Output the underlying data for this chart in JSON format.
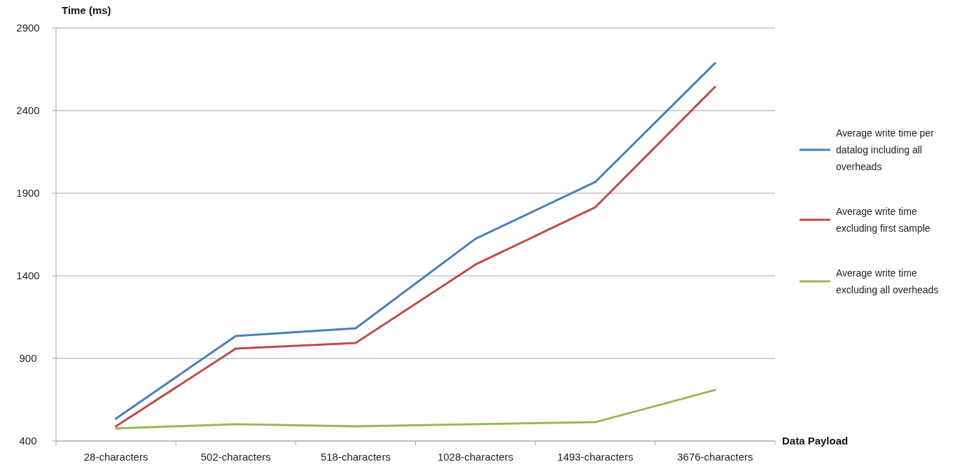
{
  "chart_data": {
    "type": "line",
    "ylabel": "Time (ms)",
    "xlabel": "Data Payload",
    "categories": [
      "28-characters",
      "502-characters",
      "518-characters",
      "1028-characters",
      "1493-characters",
      "3676-characters"
    ],
    "ylim": [
      400,
      2900
    ],
    "yticks": [
      400,
      900,
      1400,
      1900,
      2400,
      2900
    ],
    "grid": "y",
    "legend": "right",
    "marker": "none",
    "line_style": "solid",
    "series": [
      {
        "name": "Average write time per datalog including all overheads",
        "color": "#4a7ebb",
        "values": [
          536,
          1036,
          1082,
          1624,
          1968,
          2688
        ]
      },
      {
        "name": "Average write time excluding first sample",
        "color": "#be4b48",
        "values": [
          489,
          959,
          993,
          1468,
          1815,
          2544
        ]
      },
      {
        "name": "Average write time excluding all overheads",
        "color": "#98b954",
        "values": [
          476,
          502,
          489,
          502,
          514,
          709
        ]
      }
    ]
  }
}
